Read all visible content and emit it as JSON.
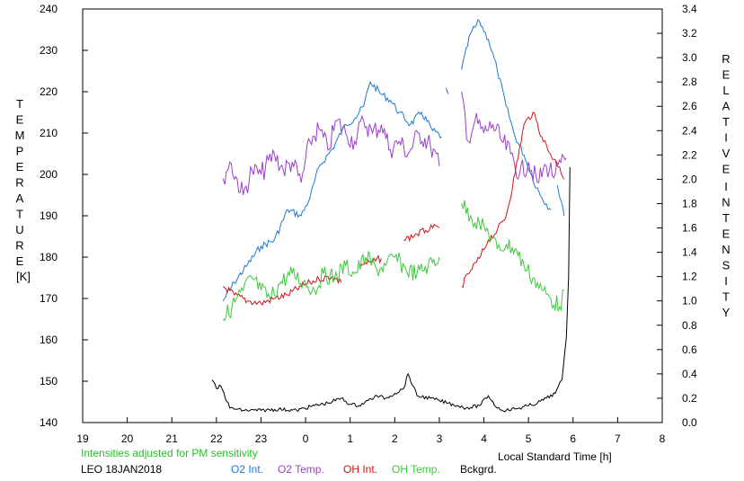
{
  "chart_data": {
    "type": "line",
    "left_axis": {
      "title_letters": [
        "T",
        "E",
        "M",
        "P",
        "E",
        "R",
        "A",
        "T",
        "U",
        "R",
        "E"
      ],
      "unit": "[K]",
      "ylim": [
        140,
        240
      ],
      "ticks": [
        "140",
        "150",
        "160",
        "170",
        "180",
        "190",
        "200",
        "210",
        "220",
        "230",
        "240"
      ]
    },
    "right_axis": {
      "title_letters_1": [
        "R",
        "E",
        "L",
        "A",
        "T",
        "I",
        "V",
        "E"
      ],
      "title_letters_2": [
        "I",
        "N",
        "T",
        "E",
        "N",
        "S",
        "I",
        "T",
        "Y"
      ],
      "ylim": [
        0.0,
        3.4
      ],
      "ticks": [
        "0.0",
        "0.2",
        "0.4",
        "0.6",
        "0.8",
        "1.0",
        "1.2",
        "1.4",
        "1.6",
        "1.8",
        "2.0",
        "2.2",
        "2.4",
        "2.6",
        "2.8",
        "3.0",
        "3.2",
        "3.4"
      ]
    },
    "x_axis": {
      "label": "Local Standard Time [h]",
      "range_hours_after_19": [
        0,
        13
      ],
      "ticks": [
        "19",
        "20",
        "21",
        "22",
        "23",
        "0",
        "1",
        "2",
        "3",
        "4",
        "5",
        "6",
        "7",
        "8"
      ]
    },
    "note": "Intensities adjusted for PM sensitivity",
    "station": "LEO 18JAN2018",
    "series": [
      {
        "name": "O2 Int.",
        "axis": "right",
        "color": "#1e78d2",
        "points": [
          [
            22.15,
            1.0
          ],
          [
            22.4,
            1.15
          ],
          [
            22.7,
            1.3
          ],
          [
            23.0,
            1.45
          ],
          [
            23.3,
            1.5
          ],
          [
            23.6,
            1.75
          ],
          [
            23.9,
            1.7
          ],
          [
            24.1,
            1.85
          ],
          [
            24.3,
            2.1
          ],
          [
            24.6,
            2.25
          ],
          [
            24.9,
            2.45
          ],
          [
            25.1,
            2.5
          ],
          [
            25.3,
            2.6
          ],
          [
            25.45,
            2.8
          ],
          [
            25.7,
            2.7
          ],
          [
            25.9,
            2.65
          ],
          [
            26.1,
            2.55
          ],
          [
            26.35,
            2.45
          ],
          [
            26.6,
            2.55
          ],
          [
            26.85,
            2.4
          ],
          [
            27.05,
            2.35
          ],
          null,
          [
            27.15,
            2.75
          ],
          [
            27.2,
            2.7
          ],
          null,
          [
            27.5,
            2.9
          ],
          [
            27.7,
            3.2
          ],
          [
            27.9,
            3.3
          ],
          [
            28.1,
            3.15
          ],
          [
            28.3,
            2.9
          ],
          [
            28.5,
            2.6
          ],
          [
            28.7,
            2.35
          ],
          [
            28.9,
            2.2
          ],
          [
            29.1,
            2.0
          ],
          [
            29.3,
            1.85
          ],
          [
            29.5,
            1.75
          ],
          null,
          [
            29.65,
            1.95
          ],
          [
            29.8,
            1.7
          ]
        ]
      },
      {
        "name": "O2 Temp.",
        "axis": "left",
        "color": "#9b3fc8",
        "points": [
          [
            22.15,
            199
          ],
          [
            22.3,
            203
          ],
          [
            22.6,
            195
          ],
          [
            22.8,
            201
          ],
          [
            23.0,
            200
          ],
          [
            23.3,
            205
          ],
          [
            23.5,
            201
          ],
          [
            23.7,
            203
          ],
          [
            23.9,
            198
          ],
          [
            24.1,
            208
          ],
          [
            24.3,
            211
          ],
          [
            24.5,
            206
          ],
          [
            24.7,
            213
          ],
          [
            24.9,
            210
          ],
          [
            25.1,
            208
          ],
          [
            25.3,
            213
          ],
          [
            25.5,
            210
          ],
          [
            25.7,
            212
          ],
          [
            25.9,
            206
          ],
          [
            26.1,
            208
          ],
          [
            26.3,
            205
          ],
          [
            26.55,
            210
          ],
          [
            26.8,
            207
          ],
          [
            27.0,
            202
          ],
          null,
          [
            27.5,
            220
          ],
          [
            27.65,
            208
          ],
          [
            27.8,
            213
          ],
          [
            28.0,
            210
          ],
          [
            28.2,
            212
          ],
          [
            28.4,
            208
          ],
          [
            28.6,
            205
          ],
          [
            28.8,
            200
          ],
          [
            29.0,
            203
          ],
          [
            29.2,
            198
          ],
          [
            29.4,
            202
          ],
          [
            29.6,
            200
          ],
          [
            29.85,
            204
          ]
        ]
      },
      {
        "name": "OH Int.",
        "axis": "right",
        "color": "#d21414",
        "points": [
          [
            22.15,
            1.12
          ],
          [
            22.4,
            1.05
          ],
          [
            22.7,
            1.0
          ],
          [
            23.0,
            0.98
          ],
          [
            23.3,
            1.02
          ],
          [
            23.6,
            1.05
          ],
          [
            23.9,
            1.12
          ],
          [
            24.1,
            1.15
          ],
          [
            24.3,
            1.18
          ],
          [
            24.6,
            1.2
          ],
          [
            24.8,
            1.15
          ],
          null,
          [
            25.2,
            1.3
          ],
          [
            25.5,
            1.32
          ],
          [
            25.7,
            1.35
          ],
          null,
          [
            26.2,
            1.5
          ],
          [
            26.5,
            1.55
          ],
          [
            26.7,
            1.58
          ],
          [
            26.85,
            1.6
          ],
          [
            27.0,
            1.6
          ],
          null,
          [
            27.5,
            1.12
          ],
          [
            27.7,
            1.25
          ],
          [
            27.9,
            1.35
          ],
          [
            28.1,
            1.5
          ],
          [
            28.3,
            1.58
          ],
          [
            28.5,
            1.7
          ],
          [
            28.7,
            2.05
          ],
          [
            28.9,
            2.45
          ],
          [
            29.1,
            2.55
          ],
          [
            29.3,
            2.35
          ],
          [
            29.5,
            2.2
          ],
          [
            29.7,
            2.1
          ],
          [
            29.8,
            2.0
          ]
        ]
      },
      {
        "name": "OH Temp.",
        "axis": "left",
        "color": "#3cc83c",
        "points": [
          [
            22.15,
            165
          ],
          [
            22.35,
            168
          ],
          [
            22.6,
            172
          ],
          [
            22.8,
            175
          ],
          [
            23.0,
            172
          ],
          [
            23.2,
            170
          ],
          [
            23.45,
            174
          ],
          [
            23.7,
            176
          ],
          [
            23.95,
            174
          ],
          [
            24.2,
            172
          ],
          [
            24.4,
            176
          ],
          [
            24.65,
            175
          ],
          [
            24.9,
            178
          ],
          [
            25.1,
            176
          ],
          [
            25.35,
            180
          ],
          [
            25.6,
            177
          ],
          [
            25.8,
            178
          ],
          [
            26.0,
            180
          ],
          [
            26.25,
            177
          ],
          [
            26.5,
            176
          ],
          [
            26.75,
            178
          ],
          [
            27.0,
            180
          ],
          null,
          [
            27.5,
            193
          ],
          [
            27.7,
            190
          ],
          [
            27.9,
            188
          ],
          [
            28.1,
            186
          ],
          [
            28.3,
            182
          ],
          [
            28.5,
            183
          ],
          [
            28.7,
            182
          ],
          [
            28.9,
            178
          ],
          [
            29.1,
            175
          ],
          [
            29.3,
            172
          ],
          [
            29.5,
            170
          ],
          [
            29.7,
            168
          ],
          [
            29.8,
            172
          ]
        ]
      },
      {
        "name": "Bckgrd.",
        "axis": "right",
        "color": "#000000",
        "points": [
          [
            21.9,
            0.35
          ],
          [
            22.0,
            0.28
          ],
          [
            22.1,
            0.3
          ],
          [
            22.3,
            0.12
          ],
          [
            22.6,
            0.1
          ],
          [
            23.0,
            0.1
          ],
          [
            23.4,
            0.11
          ],
          [
            23.8,
            0.1
          ],
          [
            24.2,
            0.14
          ],
          [
            24.5,
            0.16
          ],
          [
            24.8,
            0.2
          ],
          [
            25.0,
            0.15
          ],
          [
            25.2,
            0.14
          ],
          [
            25.4,
            0.18
          ],
          [
            25.6,
            0.22
          ],
          [
            25.8,
            0.2
          ],
          [
            26.0,
            0.24
          ],
          [
            26.2,
            0.28
          ],
          [
            26.3,
            0.4
          ],
          [
            26.5,
            0.22
          ],
          [
            26.8,
            0.2
          ],
          [
            27.0,
            0.18
          ],
          [
            27.2,
            0.16
          ],
          [
            27.4,
            0.14
          ],
          [
            27.6,
            0.12
          ],
          [
            27.9,
            0.14
          ],
          [
            28.1,
            0.22
          ],
          [
            28.3,
            0.12
          ],
          [
            28.5,
            0.1
          ],
          [
            28.8,
            0.12
          ],
          [
            29.0,
            0.14
          ],
          [
            29.2,
            0.16
          ],
          [
            29.4,
            0.2
          ],
          [
            29.6,
            0.24
          ],
          [
            29.75,
            0.35
          ],
          [
            29.85,
            0.7
          ],
          [
            29.9,
            1.2
          ],
          [
            29.93,
            2.1
          ]
        ]
      }
    ]
  }
}
